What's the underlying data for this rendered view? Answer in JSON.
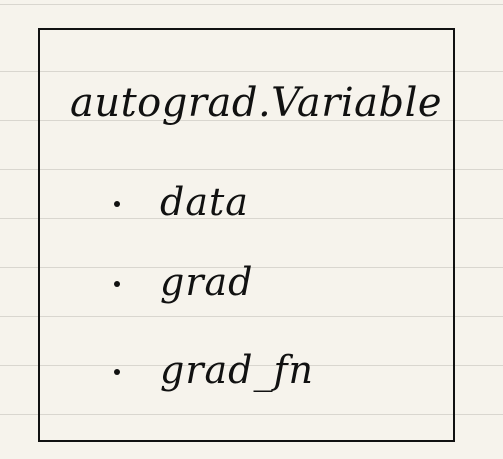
{
  "title": "autograd.Variable",
  "items": [
    {
      "label": "data"
    },
    {
      "label": "grad"
    },
    {
      "label": "grad_fn"
    }
  ]
}
